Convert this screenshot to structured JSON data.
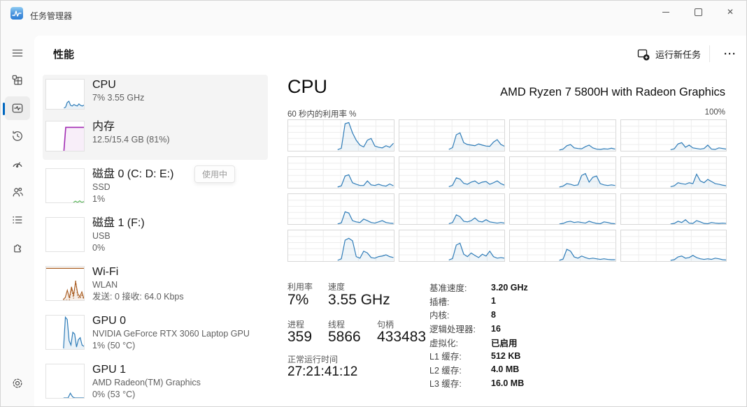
{
  "colors": {
    "accent": "#0067c0",
    "cpu_line": "#2e7cb8",
    "memory_line": "#a12bb3",
    "wifi_line": "#a85b1f",
    "disk_line": "#39a839",
    "selection_bg": "#f4f4f4"
  },
  "icons": {
    "titlebar": "task-manager-app-icon",
    "sidebar": [
      "hamburger-menu-icon",
      "processes-icon",
      "performance-icon",
      "app-history-icon",
      "startup-apps-icon",
      "users-icon",
      "details-icon",
      "services-icon",
      "settings-gear-icon"
    ],
    "header": [
      "run-new-task-icon",
      "more-ellipsis-icon"
    ],
    "window": [
      "minimize-icon",
      "maximize-icon",
      "close-icon"
    ]
  },
  "titlebar": {
    "app_title": "任务管理器"
  },
  "header": {
    "title": "性能",
    "run_new_task": "运行新任务",
    "more": "···"
  },
  "tooltip": {
    "label": "使用中"
  },
  "perf_list": [
    {
      "title": "CPU",
      "line1": "7% 3.55 GHz",
      "line2": ""
    },
    {
      "title": "内存",
      "line1": "12.5/15.4 GB (81%)",
      "line2": ""
    },
    {
      "title": "磁盘 0 (C: D: E:)",
      "line1": "SSD",
      "line2": "1%"
    },
    {
      "title": "磁盘 1 (F:)",
      "line1": "USB",
      "line2": "0%"
    },
    {
      "title": "Wi-Fi",
      "line1": "WLAN",
      "line2": "发送: 0 接收: 64.0 Kbps"
    },
    {
      "title": "GPU 0",
      "line1": "NVIDIA GeForce RTX 3060 Laptop GPU",
      "line2": "1% (50 °C)"
    },
    {
      "title": "GPU 1",
      "line1": "AMD Radeon(TM) Graphics",
      "line2": "0% (53 °C)"
    }
  ],
  "cpu_panel": {
    "title": "CPU",
    "subtitle": "AMD Ryzen 7 5800H with Radeon Graphics",
    "axis_top_left": "60 秒内的利用率 %",
    "axis_top_right": "100%",
    "stat_util_label": "利用率",
    "stat_util_value": "7%",
    "stat_speed_label": "速度",
    "stat_speed_value": "3.55 GHz",
    "stat_proc_label": "进程",
    "stat_proc_value": "359",
    "stat_thread_label": "线程",
    "stat_thread_value": "5866",
    "stat_handle_label": "句柄",
    "stat_handle_value": "433483",
    "uptime_label": "正常运行时间",
    "uptime_value": "27:21:41:12",
    "details": [
      {
        "label": "基准速度:",
        "value": "3.20 GHz"
      },
      {
        "label": "插槽:",
        "value": "1"
      },
      {
        "label": "内核:",
        "value": "8"
      },
      {
        "label": "逻辑处理器:",
        "value": "16"
      },
      {
        "label": "虚拟化:",
        "value": "已启用"
      },
      {
        "label": "L1 缓存:",
        "value": "512 KB"
      },
      {
        "label": "L2 缓存:",
        "value": "4.0 MB"
      },
      {
        "label": "L3 缓存:",
        "value": "16.0 MB"
      }
    ]
  },
  "chart_data": {
    "type": "line",
    "title": "60 秒内的利用率 %",
    "ylim": [
      0,
      100
    ],
    "x_window_seconds": 60,
    "grid": true,
    "cpu_color": "#2e7cb8",
    "cpu_fill": "rgba(46,124,184,0.08)",
    "cpu_cells": [
      {
        "start": 47,
        "points": [
          3,
          8,
          88,
          92,
          58,
          34,
          18,
          12,
          34,
          40,
          15,
          11,
          9,
          16,
          11,
          24
        ]
      },
      {
        "start": 47,
        "points": [
          4,
          10,
          52,
          58,
          26,
          20,
          18,
          16,
          22,
          18,
          15,
          14,
          28,
          36,
          20,
          14
        ]
      },
      {
        "start": 47,
        "points": [
          2,
          5,
          16,
          20,
          9,
          7,
          6,
          13,
          18,
          9,
          5,
          4,
          6,
          5,
          8,
          5
        ]
      },
      {
        "start": 47,
        "points": [
          3,
          6,
          22,
          26,
          11,
          18,
          9,
          7,
          5,
          7,
          18,
          5,
          4,
          9,
          7,
          5
        ]
      },
      {
        "start": 47,
        "points": [
          2,
          6,
          38,
          42,
          16,
          11,
          7,
          7,
          22,
          9,
          7,
          11,
          7,
          5,
          12,
          6
        ]
      },
      {
        "start": 47,
        "points": [
          3,
          8,
          32,
          28,
          14,
          11,
          18,
          22,
          13,
          18,
          20,
          11,
          16,
          22,
          13,
          8
        ]
      },
      {
        "start": 47,
        "points": [
          2,
          5,
          13,
          11,
          7,
          9,
          40,
          46,
          18,
          34,
          38,
          13,
          9,
          7,
          9,
          7
        ]
      },
      {
        "start": 47,
        "points": [
          3,
          6,
          16,
          13,
          11,
          16,
          13,
          44,
          22,
          16,
          27,
          20,
          13,
          11,
          8,
          6
        ]
      },
      {
        "start": 47,
        "points": [
          2,
          6,
          42,
          38,
          13,
          9,
          7,
          18,
          13,
          7,
          5,
          9,
          13,
          7,
          5,
          4
        ]
      },
      {
        "start": 47,
        "points": [
          3,
          7,
          32,
          26,
          11,
          9,
          13,
          22,
          11,
          9,
          16,
          9,
          7,
          5,
          7,
          5
        ]
      },
      {
        "start": 47,
        "points": [
          2,
          4,
          9,
          11,
          7,
          9,
          7,
          5,
          11,
          7,
          4,
          3,
          9,
          7,
          4,
          3
        ]
      },
      {
        "start": 47,
        "points": [
          2,
          4,
          11,
          7,
          16,
          5,
          4,
          13,
          9,
          4,
          3,
          7,
          5,
          4,
          5,
          4
        ]
      },
      {
        "start": 47,
        "points": [
          2,
          7,
          68,
          74,
          66,
          14,
          9,
          32,
          26,
          11,
          9,
          14,
          16,
          20,
          14,
          11
        ]
      },
      {
        "start": 47,
        "points": [
          3,
          8,
          52,
          58,
          22,
          14,
          26,
          18,
          11,
          22,
          16,
          32,
          14,
          9,
          11,
          9
        ]
      },
      {
        "start": 47,
        "points": [
          2,
          6,
          38,
          32,
          13,
          9,
          16,
          11,
          7,
          9,
          7,
          5,
          7,
          5,
          4,
          4
        ]
      },
      {
        "start": 47,
        "points": [
          2,
          4,
          13,
          16,
          9,
          11,
          18,
          11,
          7,
          5,
          7,
          5,
          9,
          7,
          4,
          3
        ]
      }
    ],
    "thumbs": {
      "cpu": {
        "series": [
          {
            "start": 47,
            "points": [
              3,
              6,
              22,
              26,
              12,
              10,
              15,
              12,
              10,
              17,
              12,
              10,
              13
            ],
            "color": "#2e7cb8",
            "fill": "rgba(46,124,184,0.10)",
            "w": 1.2
          }
        ]
      },
      "memory": {
        "series": [
          {
            "start": 47,
            "points": [
              0,
              80,
              80,
              80,
              80,
              80,
              80,
              80,
              80,
              80,
              80,
              80
            ],
            "color": "#a12bb3",
            "fill": "rgba(161,43,179,0.08)",
            "w": 1.6
          }
        ]
      },
      "disk0": {
        "series": [
          {
            "start": 72,
            "points": [
              0,
              4,
              0,
              5,
              0,
              3
            ],
            "color": "#39a839",
            "w": 1
          }
        ]
      },
      "wifi": {
        "series": [
          {
            "start": 0,
            "points": [
              95,
              95
            ],
            "color": "#a85b1f",
            "w": 1.2
          },
          {
            "start": 45,
            "points": [
              2,
              8,
              30,
              6,
              40,
              15,
              55,
              20,
              10,
              25,
              5
            ],
            "color": "#a85b1f",
            "fill": "rgba(168,91,31,0.10)",
            "w": 1.1
          },
          {
            "start": 45,
            "points": [
              0,
              0,
              0,
              0,
              35,
              5,
              60,
              10,
              5,
              15,
              3
            ],
            "color": "#a85b1f",
            "w": 1,
            "dash": "2 2"
          }
        ]
      },
      "gpu0": {
        "series": [
          {
            "start": 46,
            "points": [
              2,
              95,
              88,
              25,
              12,
              50,
              45,
              6,
              28,
              34,
              12,
              8
            ],
            "color": "#2e7cb8",
            "fill": "rgba(46,124,184,0.10)",
            "w": 1.2
          }
        ]
      },
      "gpu1": {
        "series": [
          {
            "start": 46,
            "points": [
              0,
              0,
              0,
              14,
              3,
              0,
              0,
              0,
              0,
              0
            ],
            "color": "#2e7cb8",
            "w": 1.2
          }
        ]
      }
    }
  }
}
